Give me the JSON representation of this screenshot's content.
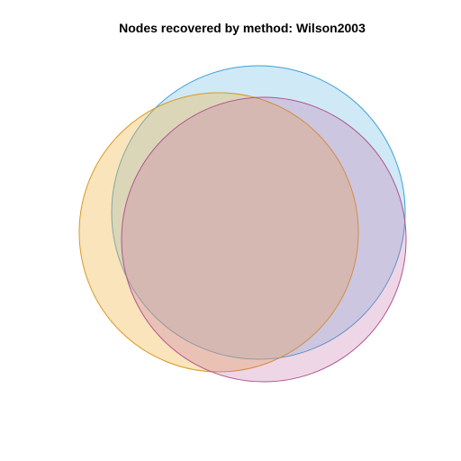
{
  "title": "Nodes recovered by method: Wilson2003",
  "sets": [
    {
      "name": "blue",
      "fill": "#3fa6e0",
      "stroke": "#3da0d6"
    },
    {
      "name": "orange",
      "fill": "#f0b84e",
      "stroke": "#d99a22"
    },
    {
      "name": "pink",
      "fill": "#c76ba6",
      "stroke": "#b0568f"
    }
  ]
}
